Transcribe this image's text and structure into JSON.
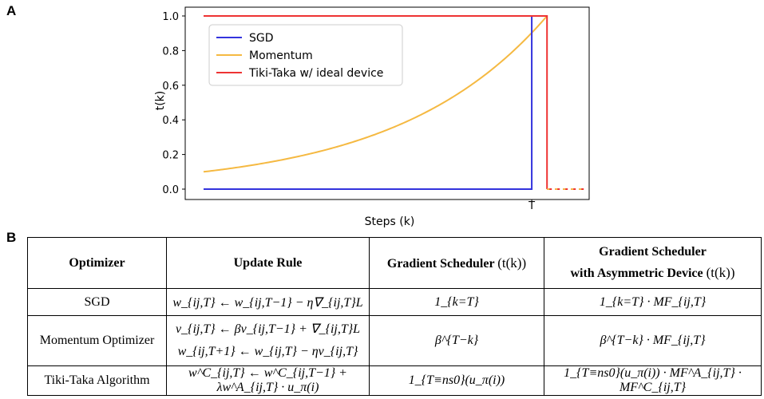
{
  "panel_a_label": "A",
  "panel_b_label": "B",
  "chart_data": {
    "type": "line",
    "xlabel": "Steps (k)",
    "ylabel": "t(k)",
    "ylim": [
      0.0,
      1.0
    ],
    "yticks": [
      "0.0",
      "0.2",
      "0.4",
      "0.6",
      "0.8",
      "1.0"
    ],
    "x_marker_label": "T",
    "x_range": [
      0,
      100
    ],
    "T": 86,
    "grid": false,
    "legend_position": "upper-left",
    "colors": {
      "sgd": "#3333dd",
      "momentum": "#f5b942",
      "tikitaka": "#ee3333"
    },
    "series": [
      {
        "name": "SGD",
        "points": [
          [
            0,
            0
          ],
          [
            86,
            0
          ],
          [
            86,
            1.0
          ],
          [
            86,
            0
          ]
        ]
      },
      {
        "name": "Momentum",
        "beta": 0.973,
        "start_value": 0.1
      },
      {
        "name": "Tiki-Taka w/ ideal device",
        "points": [
          [
            0,
            1.0
          ],
          [
            90,
            1.0
          ],
          [
            90,
            0
          ],
          [
            100,
            0
          ]
        ],
        "dashed_after": 90
      }
    ]
  },
  "table": {
    "headers": {
      "optimizer": "Optimizer",
      "update_rule": "Update Rule",
      "gradient_scheduler": "Gradient Scheduler",
      "gradient_scheduler_sym": "(t(k))",
      "gs_asym_line1": "Gradient Scheduler",
      "gs_asym_line2": "with Asymmetric Device",
      "gs_asym_sym": "(t(k))"
    },
    "rows": [
      {
        "optimizer": "SGD",
        "update": [
          "w_{ij,T} ← w_{ij,T−1} − η∇_{ij,T}L"
        ],
        "scheduler": "1_{k=T}",
        "scheduler_asym": "1_{k=T} · MF_{ij,T}"
      },
      {
        "optimizer": "Momentum Optimizer",
        "update": [
          "v_{ij,T} ← βv_{ij,T−1} + ∇_{ij,T}L",
          "w_{ij,T+1} ← w_{ij,T} − ηv_{ij,T}"
        ],
        "scheduler": "β^{T−k}",
        "scheduler_asym": "β^{T−k} · MF_{ij,T}"
      },
      {
        "optimizer": "Tiki-Taka Algorithm",
        "update": [
          "w^C_{ij,T} ← w^C_{ij,T−1} + λw^A_{ij,T} · u_π(i)"
        ],
        "scheduler": "1_{T≡ns0}(u_π(i))",
        "scheduler_asym": "1_{T≡ns0}(u_π(i)) · MF^A_{ij,T} · MF^C_{ij,T}"
      }
    ]
  }
}
